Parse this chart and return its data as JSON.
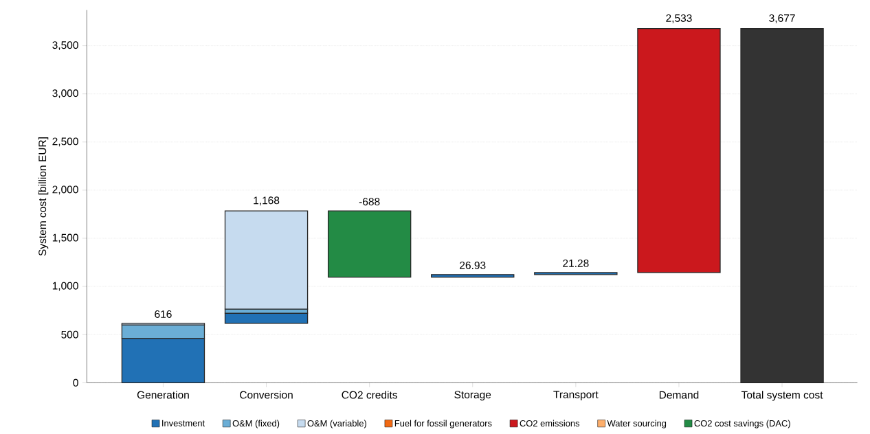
{
  "chart_data": {
    "type": "bar",
    "ylabel": "System cost [billion EUR]",
    "categories": [
      "Generation",
      "Conversion",
      "CO2 credits",
      "Storage",
      "Transport",
      "Demand",
      "Total system cost"
    ],
    "series": [
      {
        "name": "Investment",
        "color": "#2171b5",
        "base": [
          0,
          616,
          null,
          1096,
          1122.93,
          null,
          null
        ],
        "values": [
          460,
          106,
          null,
          26.93,
          21.28,
          null,
          null
        ]
      },
      {
        "name": "O&M (fixed)",
        "color": "#6baed6",
        "base": [
          460,
          722,
          null,
          null,
          null,
          null,
          null
        ],
        "values": [
          140,
          42,
          null,
          null,
          null,
          null,
          null
        ]
      },
      {
        "name": "O&M (variable)",
        "color": "#c6dbef",
        "base": [
          600,
          764,
          null,
          null,
          null,
          null,
          null
        ],
        "values": [
          16,
          1020,
          null,
          null,
          null,
          null,
          null
        ]
      },
      {
        "name": "Fuel for fossil generators",
        "color": "#f16913",
        "values": [
          null,
          null,
          null,
          null,
          null,
          null,
          null
        ]
      },
      {
        "name": "CO2 emissions",
        "color": "#cb181d",
        "base": [
          null,
          null,
          null,
          null,
          null,
          1144.21,
          null
        ],
        "values": [
          null,
          null,
          null,
          null,
          null,
          2533,
          null
        ]
      },
      {
        "name": "Water sourcing",
        "color": "#fdae6b",
        "values": [
          null,
          null,
          null,
          null,
          null,
          null,
          null
        ]
      },
      {
        "name": "CO2 cost savings (DAC)",
        "color": "#238b45",
        "base": [
          null,
          null,
          1784,
          null,
          null,
          null,
          null
        ],
        "values": [
          null,
          null,
          -688,
          null,
          null,
          null,
          null
        ]
      },
      {
        "color": "#333333",
        "base": [
          null,
          null,
          null,
          null,
          null,
          null,
          0
        ],
        "values": [
          null,
          null,
          null,
          null,
          null,
          null,
          3677
        ]
      }
    ],
    "totals": [
      "616",
      "1,168",
      "-688",
      "26.93",
      "21.28",
      "2,533",
      "3,677"
    ],
    "ylim": [
      0,
      3870
    ],
    "yticks": [
      {
        "value": 0,
        "label": "0"
      },
      {
        "value": 500,
        "label": "500"
      },
      {
        "value": 1000,
        "label": "1,000"
      },
      {
        "value": 1500,
        "label": "1,500"
      },
      {
        "value": 2000,
        "label": "2,000"
      },
      {
        "value": 2500,
        "label": "2,500"
      },
      {
        "value": 3000,
        "label": "3,000"
      },
      {
        "value": 3500,
        "label": "3,500"
      }
    ],
    "grid": "y",
    "legend": "bottom"
  }
}
